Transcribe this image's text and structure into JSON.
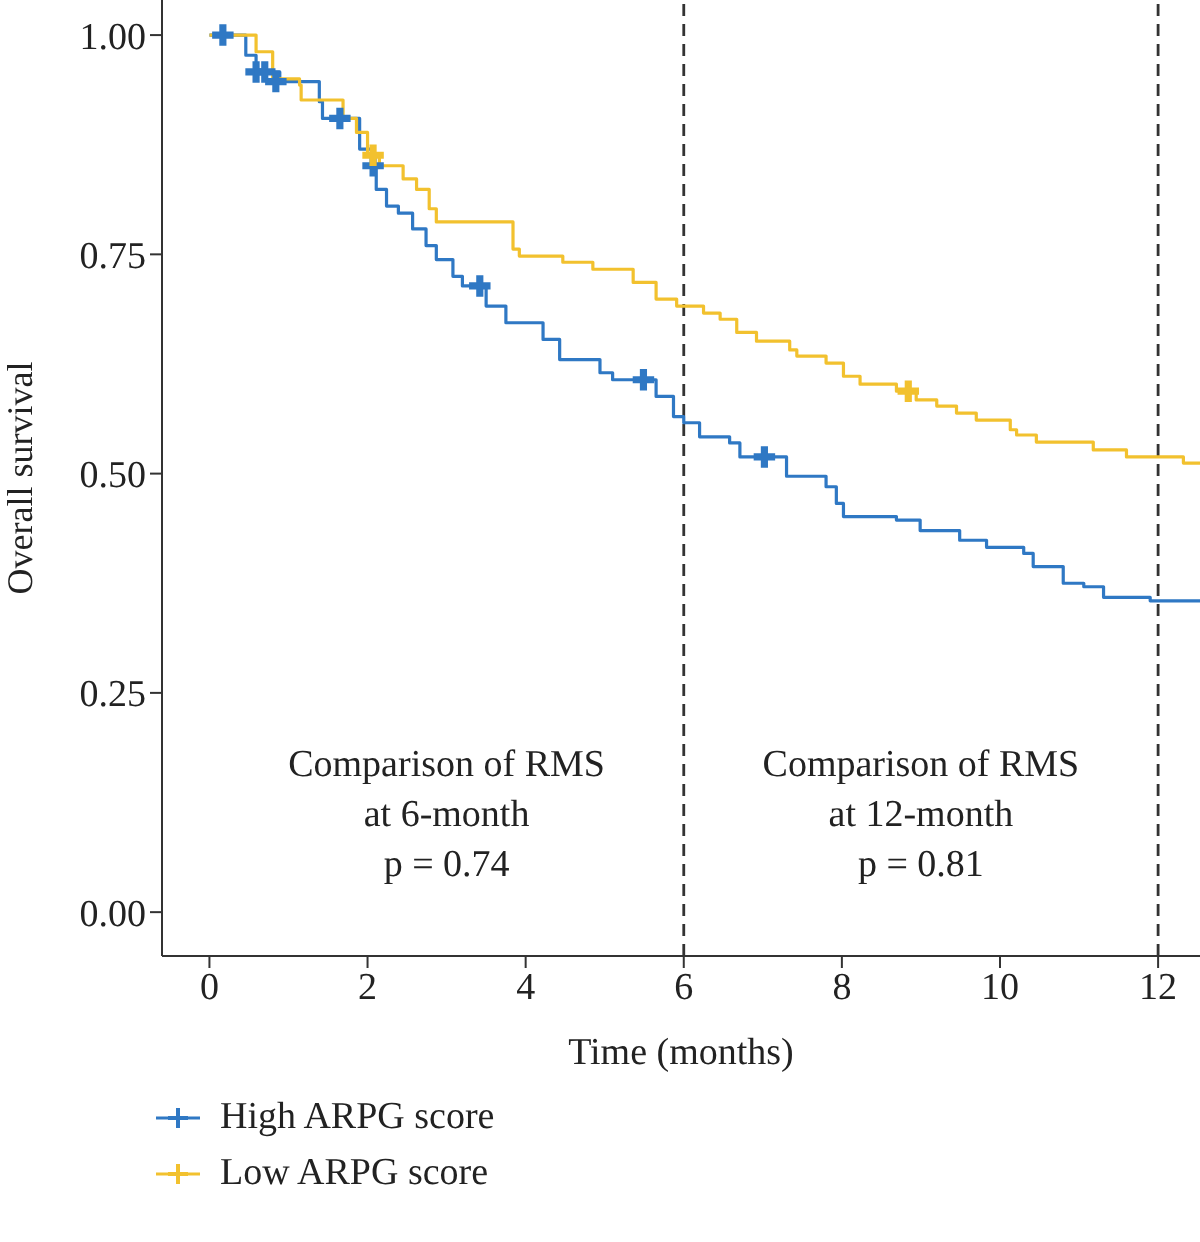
{
  "chart_data": {
    "type": "step",
    "xlabel": "Time (months)",
    "ylabel": "Overall survival",
    "xlim": [
      -0.6,
      12.53
    ],
    "xticks": [
      0,
      2,
      4,
      6,
      8,
      10,
      12
    ],
    "ylim": [
      -0.05,
      1.04
    ],
    "yticks": [
      {
        "value": 0,
        "label": "0.00"
      },
      {
        "value": 0.25,
        "label": "0.25"
      },
      {
        "value": 0.5,
        "label": "0.50"
      },
      {
        "value": 0.75,
        "label": "0.75"
      },
      {
        "value": 1,
        "label": "1.00"
      }
    ],
    "legend": "bottom left",
    "line_style": "solid",
    "series": [
      {
        "name": "High ARPG score",
        "color": "#2f78c4",
        "x": [
          0,
          0.46,
          0.59,
          0.89,
          1.39,
          1.43,
          1.9,
          2.07,
          2.11,
          2.24,
          2.39,
          2.57,
          2.74,
          2.87,
          3.08,
          3.2,
          3.5,
          3.75,
          4.22,
          4.43,
          4.94,
          5.1,
          5.65,
          5.87,
          6.0,
          6.2,
          6.58,
          6.71,
          7.3,
          7.8,
          7.93,
          8.02,
          8.69,
          8.99,
          9.49,
          9.83,
          10.3,
          10.42,
          10.8,
          11.06,
          11.31,
          11.9,
          12.53
        ],
        "values": [
          1.0,
          0.977,
          0.958,
          0.947,
          0.924,
          0.905,
          0.87,
          0.851,
          0.824,
          0.805,
          0.797,
          0.779,
          0.76,
          0.744,
          0.725,
          0.714,
          0.691,
          0.672,
          0.653,
          0.63,
          0.615,
          0.607,
          0.588,
          0.565,
          0.558,
          0.542,
          0.535,
          0.519,
          0.497,
          0.485,
          0.466,
          0.451,
          0.447,
          0.435,
          0.424,
          0.416,
          0.409,
          0.394,
          0.375,
          0.371,
          0.359,
          0.355,
          0.355
        ]
      },
      {
        "name": "Low ARPG score",
        "color": "#f2c12e",
        "x": [
          0,
          0.59,
          0.8,
          1.14,
          1.16,
          1.69,
          1.86,
          2.0,
          2.15,
          2.45,
          2.62,
          2.78,
          2.87,
          3.84,
          3.92,
          4.47,
          4.85,
          5.36,
          5.65,
          5.91,
          6.25,
          6.46,
          6.67,
          6.92,
          7.34,
          7.43,
          7.8,
          8.02,
          8.23,
          8.69,
          8.94,
          9.2,
          9.45,
          9.7,
          10.13,
          10.21,
          10.46,
          11.18,
          11.6,
          12.32,
          12.53
        ],
        "values": [
          1.0,
          0.981,
          0.95,
          0.943,
          0.926,
          0.905,
          0.889,
          0.863,
          0.851,
          0.836,
          0.824,
          0.802,
          0.787,
          0.756,
          0.748,
          0.741,
          0.733,
          0.718,
          0.699,
          0.691,
          0.683,
          0.676,
          0.661,
          0.651,
          0.641,
          0.634,
          0.626,
          0.611,
          0.602,
          0.594,
          0.584,
          0.577,
          0.569,
          0.561,
          0.55,
          0.544,
          0.536,
          0.527,
          0.519,
          0.512,
          0.512
        ]
      },
      {
        "type": "scatter",
        "marker": "cross",
        "color": "#2f78c4",
        "x": [
          0.17,
          0.59,
          0.7,
          0.84,
          1.65,
          2.07,
          3.42,
          5.49,
          7.02
        ],
        "values": [
          1.0,
          0.958,
          0.958,
          0.947,
          0.905,
          0.851,
          0.714,
          0.607,
          0.519
        ]
      },
      {
        "type": "scatter",
        "marker": "cross",
        "color": "#f2c12e",
        "x": [
          2.07,
          8.84
        ],
        "values": [
          0.863,
          0.594
        ]
      }
    ],
    "ref_lines": [
      {
        "axis": "x",
        "value": 6,
        "color": "#333333",
        "line_style": "dashed"
      },
      {
        "axis": "x",
        "value": 12,
        "color": "#333333",
        "line_style": "dashed"
      }
    ],
    "annotations": [
      "Comparison of RMS\nat 6-month\np = 0.74",
      "Comparison of RMS\nat 12-month\np = 0.81"
    ]
  }
}
